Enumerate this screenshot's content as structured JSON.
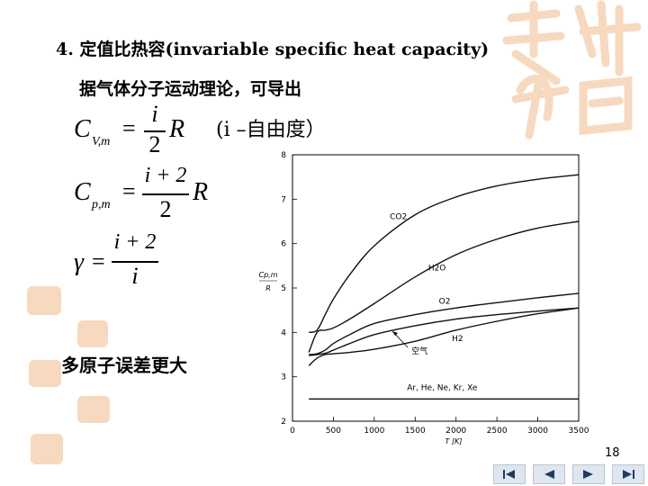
{
  "slide": {
    "title": "4. 定值比热容(invariable specific heat capacity)",
    "intro": "据气体分子运动理论，可导出",
    "note": "多原子误差更大",
    "page_number": "18"
  },
  "formulas": {
    "cv": {
      "sym": "C",
      "sub": "V,m",
      "eq": "=",
      "num": "i",
      "den": "2",
      "tail": "R"
    },
    "cp": {
      "sym": "C",
      "sub": "p,m",
      "eq": "=",
      "num": "i + 2",
      "den": "2",
      "tail": "R"
    },
    "gamma": {
      "sym": "γ",
      "eq": "=",
      "num": "i + 2",
      "den": "i"
    },
    "i_note": "(i –自由度）"
  },
  "nav": {
    "first": "first-icon",
    "prev": "prev-icon",
    "next": "next-icon",
    "last": "last-icon"
  },
  "colors": {
    "decoration": "#f6d9bf"
  },
  "chart_data": {
    "type": "line",
    "xlabel": "T [K]",
    "ylabel": "Cp,m / R",
    "xlim": [
      0,
      3500
    ],
    "ylim": [
      2,
      8
    ],
    "xticks": [
      0,
      500,
      1000,
      1500,
      2000,
      2500,
      3000,
      3500
    ],
    "yticks": [
      2,
      3,
      4,
      5,
      6,
      7,
      8
    ],
    "grid": false,
    "series": [
      {
        "name": "CO2",
        "x": [
          200,
          300,
          400,
          500,
          700,
          1000,
          1500,
          2000,
          2500,
          3000,
          3500
        ],
        "y": [
          4.0,
          4.05,
          4.4,
          4.75,
          5.3,
          5.95,
          6.65,
          7.05,
          7.3,
          7.45,
          7.55
        ]
      },
      {
        "name": "H2O",
        "x": [
          200,
          300,
          400,
          500,
          700,
          1000,
          1500,
          2000,
          2500,
          3000,
          3500
        ],
        "y": [
          3.55,
          4.0,
          4.05,
          4.1,
          4.3,
          4.65,
          5.25,
          5.75,
          6.1,
          6.35,
          6.5
        ]
      },
      {
        "name": "O2",
        "x": [
          200,
          300,
          400,
          500,
          700,
          1000,
          1500,
          2000,
          2500,
          3000,
          3500
        ],
        "y": [
          3.5,
          3.52,
          3.6,
          3.75,
          3.95,
          4.2,
          4.4,
          4.55,
          4.67,
          4.78,
          4.88
        ]
      },
      {
        "name": "空气",
        "x": [
          200,
          300,
          400,
          500,
          700,
          1000,
          1500,
          2000,
          2500,
          3000,
          3500
        ],
        "y": [
          3.48,
          3.5,
          3.53,
          3.6,
          3.75,
          3.95,
          4.15,
          4.3,
          4.4,
          4.48,
          4.55
        ]
      },
      {
        "name": "H2",
        "x": [
          200,
          300,
          400,
          500,
          700,
          1000,
          1500,
          2000,
          2500,
          3000,
          3500
        ],
        "y": [
          3.25,
          3.42,
          3.5,
          3.52,
          3.55,
          3.62,
          3.8,
          4.05,
          4.25,
          4.42,
          4.55
        ]
      },
      {
        "name": "Ar, He, Ne, Kr, Xe",
        "x": [
          200,
          3500
        ],
        "y": [
          2.5,
          2.5
        ]
      }
    ]
  }
}
